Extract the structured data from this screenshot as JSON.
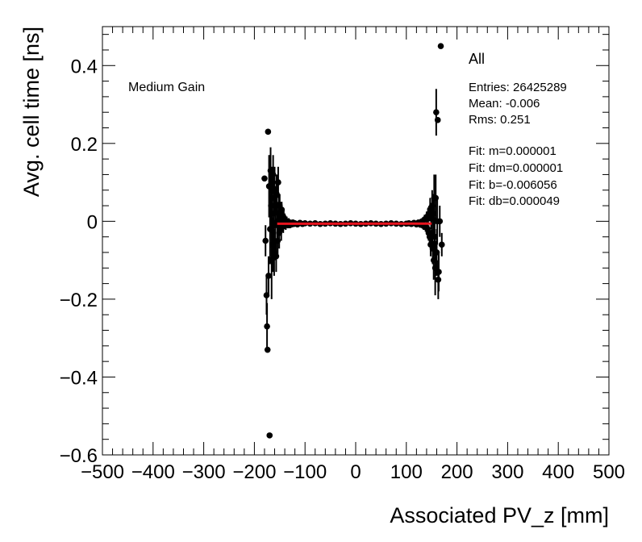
{
  "chart_data": {
    "type": "scatter",
    "xlabel": "Associated PV_z [mm]",
    "ylabel": "Avg. cell time [ns]",
    "xlim": [
      -500,
      500
    ],
    "ylim": [
      -0.6,
      0.5
    ],
    "x_ticks": [
      -500,
      -400,
      -300,
      -200,
      -100,
      0,
      100,
      200,
      300,
      400,
      500
    ],
    "x_tick_labels": [
      "−500",
      "−400",
      "−300",
      "−200",
      "−100",
      "0",
      "100",
      "200",
      "300",
      "400",
      "500"
    ],
    "y_ticks": [
      -0.6,
      -0.4,
      -0.2,
      0,
      0.2,
      0.4
    ],
    "y_tick_labels": [
      "−0.6",
      "−0.4",
      "−0.2",
      "0",
      "0.2",
      "0.4"
    ],
    "annotation": "Medium Gain",
    "legend_position": "top-right",
    "stats": {
      "title": "All",
      "lines": [
        "Entries: 26425289",
        "Mean: -0.006",
        "Rms: 0.251",
        "",
        "Fit: m=0.000001",
        "Fit: dm=0.000001",
        "Fit: b=-0.006056",
        "Fit: db=0.000049"
      ]
    },
    "fit_line": {
      "x": [
        -155,
        150
      ],
      "y": [
        -0.0062,
        -0.0059
      ],
      "color": "#e8141e"
    },
    "marker_color": "#000000",
    "points": [
      {
        "x": -180,
        "y": 0.11,
        "e": 0.0
      },
      {
        "x": -178,
        "y": -0.05,
        "e": 0.04
      },
      {
        "x": -176,
        "y": -0.19,
        "e": 0.05
      },
      {
        "x": -175,
        "y": -0.27,
        "e": 0.06
      },
      {
        "x": -174,
        "y": -0.33,
        "e": 0.0
      },
      {
        "x": -173,
        "y": 0.23,
        "e": 0.0
      },
      {
        "x": -172,
        "y": -0.14,
        "e": 0.05
      },
      {
        "x": -171,
        "y": 0.09,
        "e": 0.08
      },
      {
        "x": -170,
        "y": -0.55,
        "e": 0.0
      },
      {
        "x": -169,
        "y": -0.02,
        "e": 0.09
      },
      {
        "x": -168,
        "y": 0.13,
        "e": 0.06
      },
      {
        "x": -167,
        "y": 0.04,
        "e": 0.07
      },
      {
        "x": -166,
        "y": -0.1,
        "e": 0.1
      },
      {
        "x": -165,
        "y": 0.06,
        "e": 0.08
      },
      {
        "x": -164,
        "y": -0.06,
        "e": 0.07
      },
      {
        "x": -163,
        "y": 0.12,
        "e": 0.05
      },
      {
        "x": -162,
        "y": 0.02,
        "e": 0.1
      },
      {
        "x": -161,
        "y": -0.08,
        "e": 0.06
      },
      {
        "x": -160,
        "y": 0.08,
        "e": 0.06
      },
      {
        "x": -159,
        "y": -0.01,
        "e": 0.09
      },
      {
        "x": -158,
        "y": 0.04,
        "e": 0.05
      },
      {
        "x": -157,
        "y": -0.09,
        "e": 0.04
      },
      {
        "x": -156,
        "y": 0.07,
        "e": 0.05
      },
      {
        "x": -155,
        "y": 0.0,
        "e": 0.05
      },
      {
        "x": -154,
        "y": -0.05,
        "e": 0.04
      },
      {
        "x": -153,
        "y": 0.1,
        "e": 0.04
      },
      {
        "x": -152,
        "y": 0.02,
        "e": 0.05
      },
      {
        "x": -151,
        "y": -0.03,
        "e": 0.04
      },
      {
        "x": -150,
        "y": 0.04,
        "e": 0.03
      },
      {
        "x": -149,
        "y": 0.01,
        "e": 0.03
      },
      {
        "x": -148,
        "y": 0.02,
        "e": 0.03
      },
      {
        "x": -147,
        "y": -0.02,
        "e": 0.03
      },
      {
        "x": -146,
        "y": 0.03,
        "e": 0.02
      },
      {
        "x": -145,
        "y": 0.0,
        "e": 0.02
      },
      {
        "x": -144,
        "y": 0.01,
        "e": 0.02
      },
      {
        "x": -143,
        "y": -0.01,
        "e": 0.02
      },
      {
        "x": -142,
        "y": 0.01,
        "e": 0.02
      },
      {
        "x": -141,
        "y": -0.005,
        "e": 0.015
      },
      {
        "x": -140,
        "y": 0.005,
        "e": 0.015
      },
      {
        "x": -138,
        "y": -0.01,
        "e": 0.012
      },
      {
        "x": -136,
        "y": 0.0,
        "e": 0.012
      },
      {
        "x": -134,
        "y": -0.008,
        "e": 0.01
      },
      {
        "x": -132,
        "y": -0.002,
        "e": 0.01
      },
      {
        "x": -130,
        "y": -0.01,
        "e": 0.008
      },
      {
        "x": -128,
        "y": -0.004,
        "e": 0.008
      },
      {
        "x": -126,
        "y": -0.008,
        "e": 0.007
      },
      {
        "x": -124,
        "y": -0.003,
        "e": 0.006
      },
      {
        "x": -122,
        "y": -0.007,
        "e": 0.006
      },
      {
        "x": -120,
        "y": -0.005,
        "e": 0.005
      },
      {
        "x": -115,
        "y": -0.008,
        "e": 0.004
      },
      {
        "x": -110,
        "y": -0.004,
        "e": 0.004
      },
      {
        "x": -105,
        "y": -0.007,
        "e": 0.003
      },
      {
        "x": -100,
        "y": -0.005,
        "e": 0.003
      },
      {
        "x": -90,
        "y": -0.006,
        "e": 0.003
      },
      {
        "x": -80,
        "y": -0.005,
        "e": 0.002
      },
      {
        "x": -70,
        "y": -0.007,
        "e": 0.002
      },
      {
        "x": -60,
        "y": -0.006,
        "e": 0.002
      },
      {
        "x": -50,
        "y": -0.005,
        "e": 0.002
      },
      {
        "x": -40,
        "y": -0.006,
        "e": 0.002
      },
      {
        "x": -30,
        "y": -0.007,
        "e": 0.002
      },
      {
        "x": -20,
        "y": -0.006,
        "e": 0.002
      },
      {
        "x": -10,
        "y": -0.005,
        "e": 0.002
      },
      {
        "x": 0,
        "y": -0.006,
        "e": 0.002
      },
      {
        "x": 10,
        "y": -0.007,
        "e": 0.002
      },
      {
        "x": 20,
        "y": -0.006,
        "e": 0.002
      },
      {
        "x": 30,
        "y": -0.005,
        "e": 0.002
      },
      {
        "x": 40,
        "y": -0.006,
        "e": 0.002
      },
      {
        "x": 50,
        "y": -0.007,
        "e": 0.002
      },
      {
        "x": 60,
        "y": -0.006,
        "e": 0.002
      },
      {
        "x": 70,
        "y": -0.005,
        "e": 0.002
      },
      {
        "x": 80,
        "y": -0.006,
        "e": 0.002
      },
      {
        "x": 90,
        "y": -0.007,
        "e": 0.003
      },
      {
        "x": 100,
        "y": -0.006,
        "e": 0.003
      },
      {
        "x": 105,
        "y": -0.005,
        "e": 0.003
      },
      {
        "x": 110,
        "y": -0.007,
        "e": 0.004
      },
      {
        "x": 115,
        "y": -0.004,
        "e": 0.004
      },
      {
        "x": 120,
        "y": -0.008,
        "e": 0.005
      },
      {
        "x": 124,
        "y": -0.003,
        "e": 0.006
      },
      {
        "x": 128,
        "y": -0.009,
        "e": 0.007
      },
      {
        "x": 131,
        "y": 0.0,
        "e": 0.008
      },
      {
        "x": 134,
        "y": -0.012,
        "e": 0.01
      },
      {
        "x": 136,
        "y": 0.005,
        "e": 0.012
      },
      {
        "x": 138,
        "y": -0.015,
        "e": 0.012
      },
      {
        "x": 140,
        "y": 0.01,
        "e": 0.015
      },
      {
        "x": 142,
        "y": -0.02,
        "e": 0.015
      },
      {
        "x": 143,
        "y": 0.015,
        "e": 0.02
      },
      {
        "x": 144,
        "y": -0.03,
        "e": 0.02
      },
      {
        "x": 145,
        "y": 0.02,
        "e": 0.02
      },
      {
        "x": 146,
        "y": -0.04,
        "e": 0.025
      },
      {
        "x": 147,
        "y": 0.03,
        "e": 0.03
      },
      {
        "x": 148,
        "y": -0.06,
        "e": 0.03
      },
      {
        "x": 149,
        "y": 0.01,
        "e": 0.03
      },
      {
        "x": 150,
        "y": -0.03,
        "e": 0.04
      },
      {
        "x": 151,
        "y": 0.04,
        "e": 0.04
      },
      {
        "x": 152,
        "y": -0.07,
        "e": 0.04
      },
      {
        "x": 153,
        "y": 0.02,
        "e": 0.05
      },
      {
        "x": 154,
        "y": -0.1,
        "e": 0.05
      },
      {
        "x": 155,
        "y": 0.06,
        "e": 0.06
      },
      {
        "x": 156,
        "y": -0.04,
        "e": 0.05
      },
      {
        "x": 157,
        "y": -0.12,
        "e": 0.07
      },
      {
        "x": 158,
        "y": 0.06,
        "e": 0.06
      },
      {
        "x": 159,
        "y": 0.28,
        "e": 0.06
      },
      {
        "x": 160,
        "y": -0.08,
        "e": 0.06
      },
      {
        "x": 161,
        "y": 0.0,
        "e": 0.06
      },
      {
        "x": 162,
        "y": 0.26,
        "e": 0.0
      },
      {
        "x": 163,
        "y": -0.15,
        "e": 0.05
      },
      {
        "x": 164,
        "y": -0.13,
        "e": 0.05
      },
      {
        "x": 166,
        "y": 0.0,
        "e": 0.04
      },
      {
        "x": 168,
        "y": 0.45,
        "e": 0.0
      },
      {
        "x": 170,
        "y": -0.06,
        "e": 0.03
      }
    ]
  }
}
